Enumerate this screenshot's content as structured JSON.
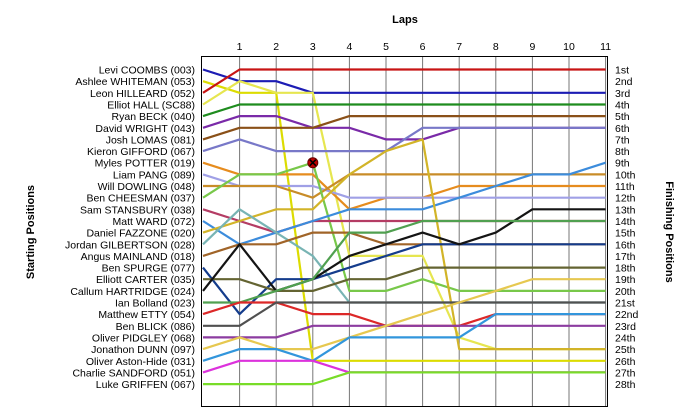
{
  "chart_data": {
    "type": "line",
    "title": "Laps",
    "ylabel_left": "Starting Positions",
    "ylabel_right": "Finishing Positions",
    "x": [
      0,
      1,
      2,
      3,
      4,
      5,
      6,
      7,
      8,
      9,
      10,
      11
    ],
    "x_tick_labels": [
      "1",
      "2",
      "3",
      "4",
      "5",
      "6",
      "7",
      "8",
      "9",
      "10",
      "11"
    ],
    "finish_labels": [
      "1st",
      "2nd",
      "3rd",
      "4th",
      "5th",
      "6th",
      "7th",
      "8th",
      "9th",
      "10th",
      "11th",
      "12th",
      "13th",
      "14th",
      "15th",
      "16th",
      "17th",
      "18th",
      "19th",
      "20th",
      "21st",
      "22nd",
      "23rd",
      "24th",
      "25th",
      "26th",
      "27th",
      "28th"
    ],
    "ylim": [
      1,
      28
    ],
    "y_inverted": true,
    "grid": "vertical",
    "annotations": [
      {
        "marker": "red-x",
        "x": 3,
        "y": 9
      }
    ],
    "series": [
      {
        "name": "Levi COOMBS (003)",
        "color": "#1c1cb4",
        "positions": [
          1,
          2,
          2,
          3,
          3,
          3,
          3,
          3,
          3,
          3,
          3,
          3
        ]
      },
      {
        "name": "Ashlee WHITEMAN (053)",
        "color": "#dcdc00",
        "positions": [
          2,
          3,
          3,
          26,
          26,
          26,
          26,
          26,
          26,
          26,
          26,
          26
        ]
      },
      {
        "name": "Leon HILLEARD (052)",
        "color": "#c81414",
        "positions": [
          3,
          1,
          1,
          1,
          1,
          1,
          1,
          1,
          1,
          1,
          1,
          1
        ]
      },
      {
        "name": "Elliot HALL (SC88)",
        "color": "#e6e650",
        "positions": [
          4,
          2,
          3,
          3,
          17,
          17,
          17,
          24,
          25,
          25,
          25,
          25
        ]
      },
      {
        "name": "Ryan BECK (040)",
        "color": "#1e8c1e",
        "positions": [
          5,
          4,
          4,
          4,
          4,
          4,
          4,
          4,
          4,
          4,
          4,
          4
        ]
      },
      {
        "name": "David WRIGHT (043)",
        "color": "#7a2aa8",
        "positions": [
          6,
          5,
          5,
          6,
          6,
          7,
          7,
          6,
          6,
          6,
          6,
          6
        ]
      },
      {
        "name": "Josh LOMAS (081)",
        "color": "#8a5018",
        "positions": [
          7,
          6,
          6,
          6,
          5,
          5,
          5,
          5,
          5,
          5,
          5,
          5
        ]
      },
      {
        "name": "Kieron GIFFORD (067)",
        "color": "#7878c8",
        "positions": [
          8,
          7,
          8,
          8,
          8,
          8,
          6,
          6,
          6,
          6,
          6,
          6
        ]
      },
      {
        "name": "Myles POTTER (019)",
        "color": "#e68c1e",
        "positions": [
          9,
          10,
          10,
          10,
          13,
          12,
          12,
          11,
          11,
          11,
          11,
          11
        ]
      },
      {
        "name": "Liam PANG (089)",
        "color": "#a0a0e6",
        "positions": [
          10,
          11,
          11,
          11,
          12,
          12,
          12,
          12,
          12,
          12,
          12,
          12
        ]
      },
      {
        "name": "Will DOWLING (048)",
        "color": "#c88c28",
        "positions": [
          11,
          11,
          11,
          12,
          10,
          10,
          10,
          10,
          10,
          10,
          10,
          10
        ]
      },
      {
        "name": "Ben CHEESMAN (037)",
        "color": "#78c84a",
        "positions": [
          12,
          10,
          10,
          9,
          20,
          20,
          19,
          20,
          20,
          20,
          20,
          20
        ]
      },
      {
        "name": "Sam STANSBURY (038)",
        "color": "#b43c64",
        "positions": [
          13,
          14,
          15,
          14,
          14,
          14,
          14,
          14,
          14,
          14,
          14,
          14
        ]
      },
      {
        "name": "Matt WARD (072)",
        "color": "#3c8cdc",
        "positions": [
          14,
          16,
          15,
          14,
          13,
          13,
          13,
          12,
          11,
          10,
          10,
          9
        ]
      },
      {
        "name": "Daniel FAZZONE (020)",
        "color": "#d2b428",
        "positions": [
          15,
          14,
          13,
          13,
          10,
          8,
          7,
          25,
          25,
          25,
          25,
          25
        ]
      },
      {
        "name": "Jordan GILBERTSON (028)",
        "color": "#78b4b4",
        "positions": [
          16,
          13,
          15,
          17,
          21,
          21,
          21,
          21,
          21,
          21,
          21,
          21
        ]
      },
      {
        "name": "Angus MAINLAND (018)",
        "color": "#a06428",
        "positions": [
          17,
          16,
          16,
          15,
          15,
          16,
          16,
          16,
          16,
          16,
          16,
          16
        ]
      },
      {
        "name": "Ben SPURGE (077)",
        "color": "#143c8c",
        "positions": [
          18,
          22,
          19,
          19,
          18,
          17,
          16,
          16,
          16,
          16,
          16,
          16
        ]
      },
      {
        "name": "Elliott CARTER (035)",
        "color": "#646432",
        "positions": [
          19,
          19,
          20,
          20,
          19,
          19,
          18,
          18,
          18,
          18,
          18,
          18
        ]
      },
      {
        "name": "Callum HARTRIDGE (024)",
        "color": "#141414",
        "positions": [
          20,
          16,
          20,
          19,
          17,
          16,
          15,
          16,
          15,
          13,
          13,
          13
        ]
      },
      {
        "name": "Ian Bolland (023)",
        "color": "#50a050",
        "positions": [
          21,
          21,
          20,
          19,
          15,
          15,
          14,
          14,
          14,
          14,
          14,
          14
        ]
      },
      {
        "name": "Matthew ETTY (054)",
        "color": "#dc2828",
        "positions": [
          22,
          21,
          21,
          22,
          22,
          23,
          23,
          23,
          22,
          22,
          22,
          22
        ]
      },
      {
        "name": "Ben BLICK (086)",
        "color": "#505050",
        "positions": [
          23,
          23,
          21,
          21,
          21,
          21,
          21,
          21,
          21,
          21,
          21,
          21
        ]
      },
      {
        "name": "Oliver PIDGLEY (068)",
        "color": "#8c3ca0",
        "positions": [
          24,
          24,
          24,
          23,
          23,
          23,
          23,
          23,
          23,
          23,
          23,
          23
        ]
      },
      {
        "name": "Jonathon DUNN (097)",
        "color": "#e6c850",
        "positions": [
          25,
          24,
          25,
          25,
          24,
          23,
          22,
          21,
          20,
          19,
          19,
          19
        ]
      },
      {
        "name": "Oliver Aston-Hide (031)",
        "color": "#3296dc",
        "positions": [
          26,
          25,
          25,
          26,
          24,
          24,
          24,
          24,
          22,
          22,
          22,
          22
        ]
      },
      {
        "name": "Charlie SANDFORD (051)",
        "color": "#dc32dc",
        "positions": [
          27,
          26,
          26,
          26,
          27,
          27,
          27,
          27,
          27,
          27,
          27,
          27
        ]
      },
      {
        "name": "Luke GRIFFEN (067)",
        "color": "#78dc28",
        "positions": [
          28,
          28,
          28,
          28,
          27,
          27,
          27,
          27,
          27,
          27,
          27,
          27
        ]
      }
    ]
  }
}
